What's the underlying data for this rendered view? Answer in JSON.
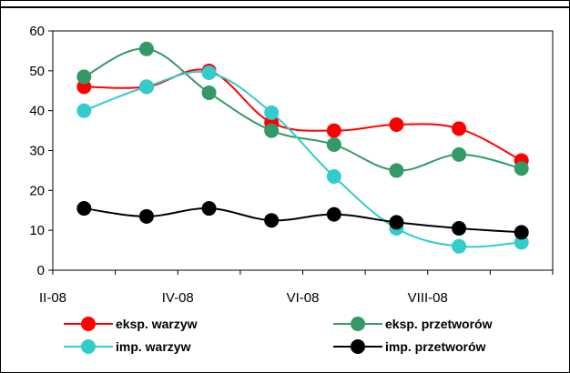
{
  "chart_data": {
    "type": "line",
    "x": [
      1,
      2,
      3,
      4,
      5,
      6,
      7,
      8
    ],
    "x_tick_labels": [
      "II-08",
      "IV-08",
      "VI-08",
      "VIII-08"
    ],
    "ylim": [
      0,
      60
    ],
    "y_ticks": [
      0,
      10,
      20,
      30,
      40,
      50,
      60
    ],
    "grid": false,
    "legend_position": "bottom",
    "series": [
      {
        "name": "eksp. warzyw",
        "color": "#ff0000",
        "values": [
          46,
          46,
          50,
          37,
          35,
          36.5,
          35.5,
          27.5
        ]
      },
      {
        "name": "eksp. przetworów",
        "color": "#339966",
        "values": [
          48.5,
          55.5,
          44.5,
          35,
          31.5,
          25,
          29,
          25.5
        ]
      },
      {
        "name": "imp. warzyw",
        "color": "#33cccc",
        "values": [
          40,
          46,
          49.5,
          39.5,
          23.5,
          10.5,
          6,
          7
        ]
      },
      {
        "name": "imp. przetworów",
        "color": "#000000",
        "values": [
          15.5,
          13.5,
          15.5,
          12.5,
          14,
          12,
          10.5,
          9.5
        ]
      }
    ]
  }
}
